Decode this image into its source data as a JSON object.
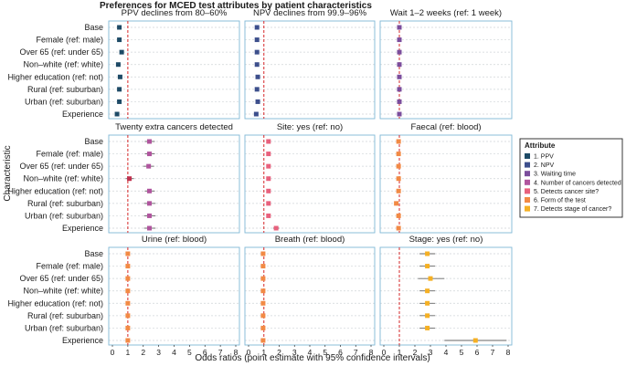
{
  "chart_data": {
    "type": "scatter",
    "title": "Preferences for MCED test attributes by patient characteristics",
    "xlabel": "Odds ratios (point estimate with 95% confidence intervals)",
    "ylabel": "Characteristic",
    "xlim": [
      0,
      8
    ],
    "x_ticks": [
      "0",
      "1",
      "2",
      "3",
      "4",
      "5",
      "6",
      "7",
      "8"
    ],
    "reference_line": 1,
    "categories": [
      "Base",
      "Female (ref: male)",
      "Over 65 (ref: under 65)",
      "Non–white (ref: white)",
      "Higher education (ref: not)",
      "Rural (ref: suburban)",
      "Urban  (ref: suburban)",
      "Experience"
    ],
    "legend": {
      "title": "Attribute",
      "items": [
        {
          "label": "1. PPV",
          "color": "#1e4a66"
        },
        {
          "label": "2. NPV",
          "color": "#3d4f8c"
        },
        {
          "label": "3. Waiting time",
          "color": "#7b4d9c"
        },
        {
          "label": "4. Number of cancers detected",
          "color": "#b0559e"
        },
        {
          "label": "5. Detects cancer site?",
          "color": "#e8617d"
        },
        {
          "label": "6. Form of the test",
          "color": "#f28a45"
        },
        {
          "label": "7. Detects stage of cancer?",
          "color": "#f5b024"
        }
      ]
    },
    "panels": [
      {
        "title": "PPV declines from 80–60%",
        "color": "#1e4a66",
        "values": [
          0.45,
          0.45,
          0.6,
          0.38,
          0.5,
          0.45,
          0.45,
          0.3
        ],
        "lower": [
          0.38,
          0.38,
          0.5,
          0.3,
          0.42,
          0.38,
          0.38,
          0.2
        ],
        "upper": [
          0.52,
          0.52,
          0.7,
          0.46,
          0.58,
          0.52,
          0.52,
          0.4
        ]
      },
      {
        "title": "NPV declines from 99.9–96%",
        "color": "#3d4f8c",
        "values": [
          0.55,
          0.55,
          0.55,
          0.55,
          0.6,
          0.55,
          0.6,
          0.5
        ],
        "lower": [
          0.48,
          0.48,
          0.48,
          0.48,
          0.52,
          0.48,
          0.52,
          0.42
        ],
        "upper": [
          0.62,
          0.62,
          0.62,
          0.62,
          0.68,
          0.62,
          0.68,
          0.58
        ]
      },
      {
        "title": "Wait 1–2 weeks (ref: 1 week)",
        "color": "#7b4d9c",
        "values": [
          1.0,
          1.0,
          1.0,
          1.0,
          1.0,
          1.0,
          1.0,
          1.0
        ],
        "lower": [
          0.95,
          0.95,
          0.95,
          0.95,
          0.95,
          0.95,
          0.95,
          0.95
        ],
        "upper": [
          1.05,
          1.05,
          1.05,
          1.05,
          1.05,
          1.05,
          1.05,
          1.05
        ]
      },
      {
        "title": "Twenty extra cancers detected",
        "color": "#b0559e",
        "values": [
          2.4,
          2.4,
          2.35,
          1.1,
          2.4,
          2.4,
          2.4,
          2.4
        ],
        "lower": [
          2.1,
          2.1,
          2.0,
          0.85,
          2.1,
          2.05,
          2.05,
          2.05
        ],
        "upper": [
          2.75,
          2.75,
          2.7,
          1.4,
          2.75,
          2.8,
          2.8,
          2.8
        ],
        "highlight_index": 3,
        "highlight_color": "#c0314e"
      },
      {
        "title": "Site: yes (ref: no)",
        "color": "#e8617d",
        "values": [
          1.3,
          1.3,
          1.3,
          1.3,
          1.3,
          1.3,
          1.3,
          1.8
        ],
        "lower": [
          1.2,
          1.2,
          1.2,
          1.2,
          1.2,
          1.2,
          1.2,
          1.6
        ],
        "upper": [
          1.4,
          1.4,
          1.4,
          1.4,
          1.4,
          1.4,
          1.4,
          2.0
        ]
      },
      {
        "title": "Faecal (ref: blood)",
        "color": "#f28a45",
        "values": [
          0.95,
          0.95,
          0.95,
          0.95,
          0.95,
          0.8,
          0.95,
          0.95
        ],
        "lower": [
          0.9,
          0.9,
          0.9,
          0.9,
          0.9,
          0.72,
          0.9,
          0.9
        ],
        "upper": [
          1.0,
          1.0,
          1.0,
          1.0,
          1.0,
          0.88,
          1.0,
          1.0
        ]
      },
      {
        "title": "Urine (ref: blood)",
        "color": "#f28a45",
        "values": [
          1.0,
          1.0,
          1.0,
          1.0,
          1.0,
          1.0,
          1.0,
          1.0
        ],
        "lower": [
          0.95,
          0.95,
          0.95,
          0.95,
          0.95,
          0.95,
          0.95,
          0.95
        ],
        "upper": [
          1.05,
          1.05,
          1.05,
          1.05,
          1.05,
          1.05,
          1.05,
          1.05
        ]
      },
      {
        "title": "Breath (ref: blood)",
        "color": "#f28a45",
        "values": [
          0.95,
          0.95,
          0.95,
          0.95,
          0.95,
          0.95,
          0.95,
          0.95
        ],
        "lower": [
          0.9,
          0.9,
          0.9,
          0.9,
          0.9,
          0.9,
          0.9,
          0.9
        ],
        "upper": [
          1.0,
          1.0,
          1.0,
          1.0,
          1.0,
          1.0,
          1.0,
          1.0
        ]
      },
      {
        "title": "Stage: yes (ref: no)",
        "color": "#f5b024",
        "values": [
          2.8,
          2.8,
          3.0,
          2.8,
          2.8,
          2.8,
          2.8,
          5.9
        ],
        "lower": [
          2.3,
          2.3,
          2.2,
          2.3,
          2.3,
          2.3,
          2.3,
          3.9
        ],
        "upper": [
          3.3,
          3.3,
          3.9,
          3.3,
          3.3,
          3.3,
          3.3,
          7.9
        ]
      }
    ]
  }
}
